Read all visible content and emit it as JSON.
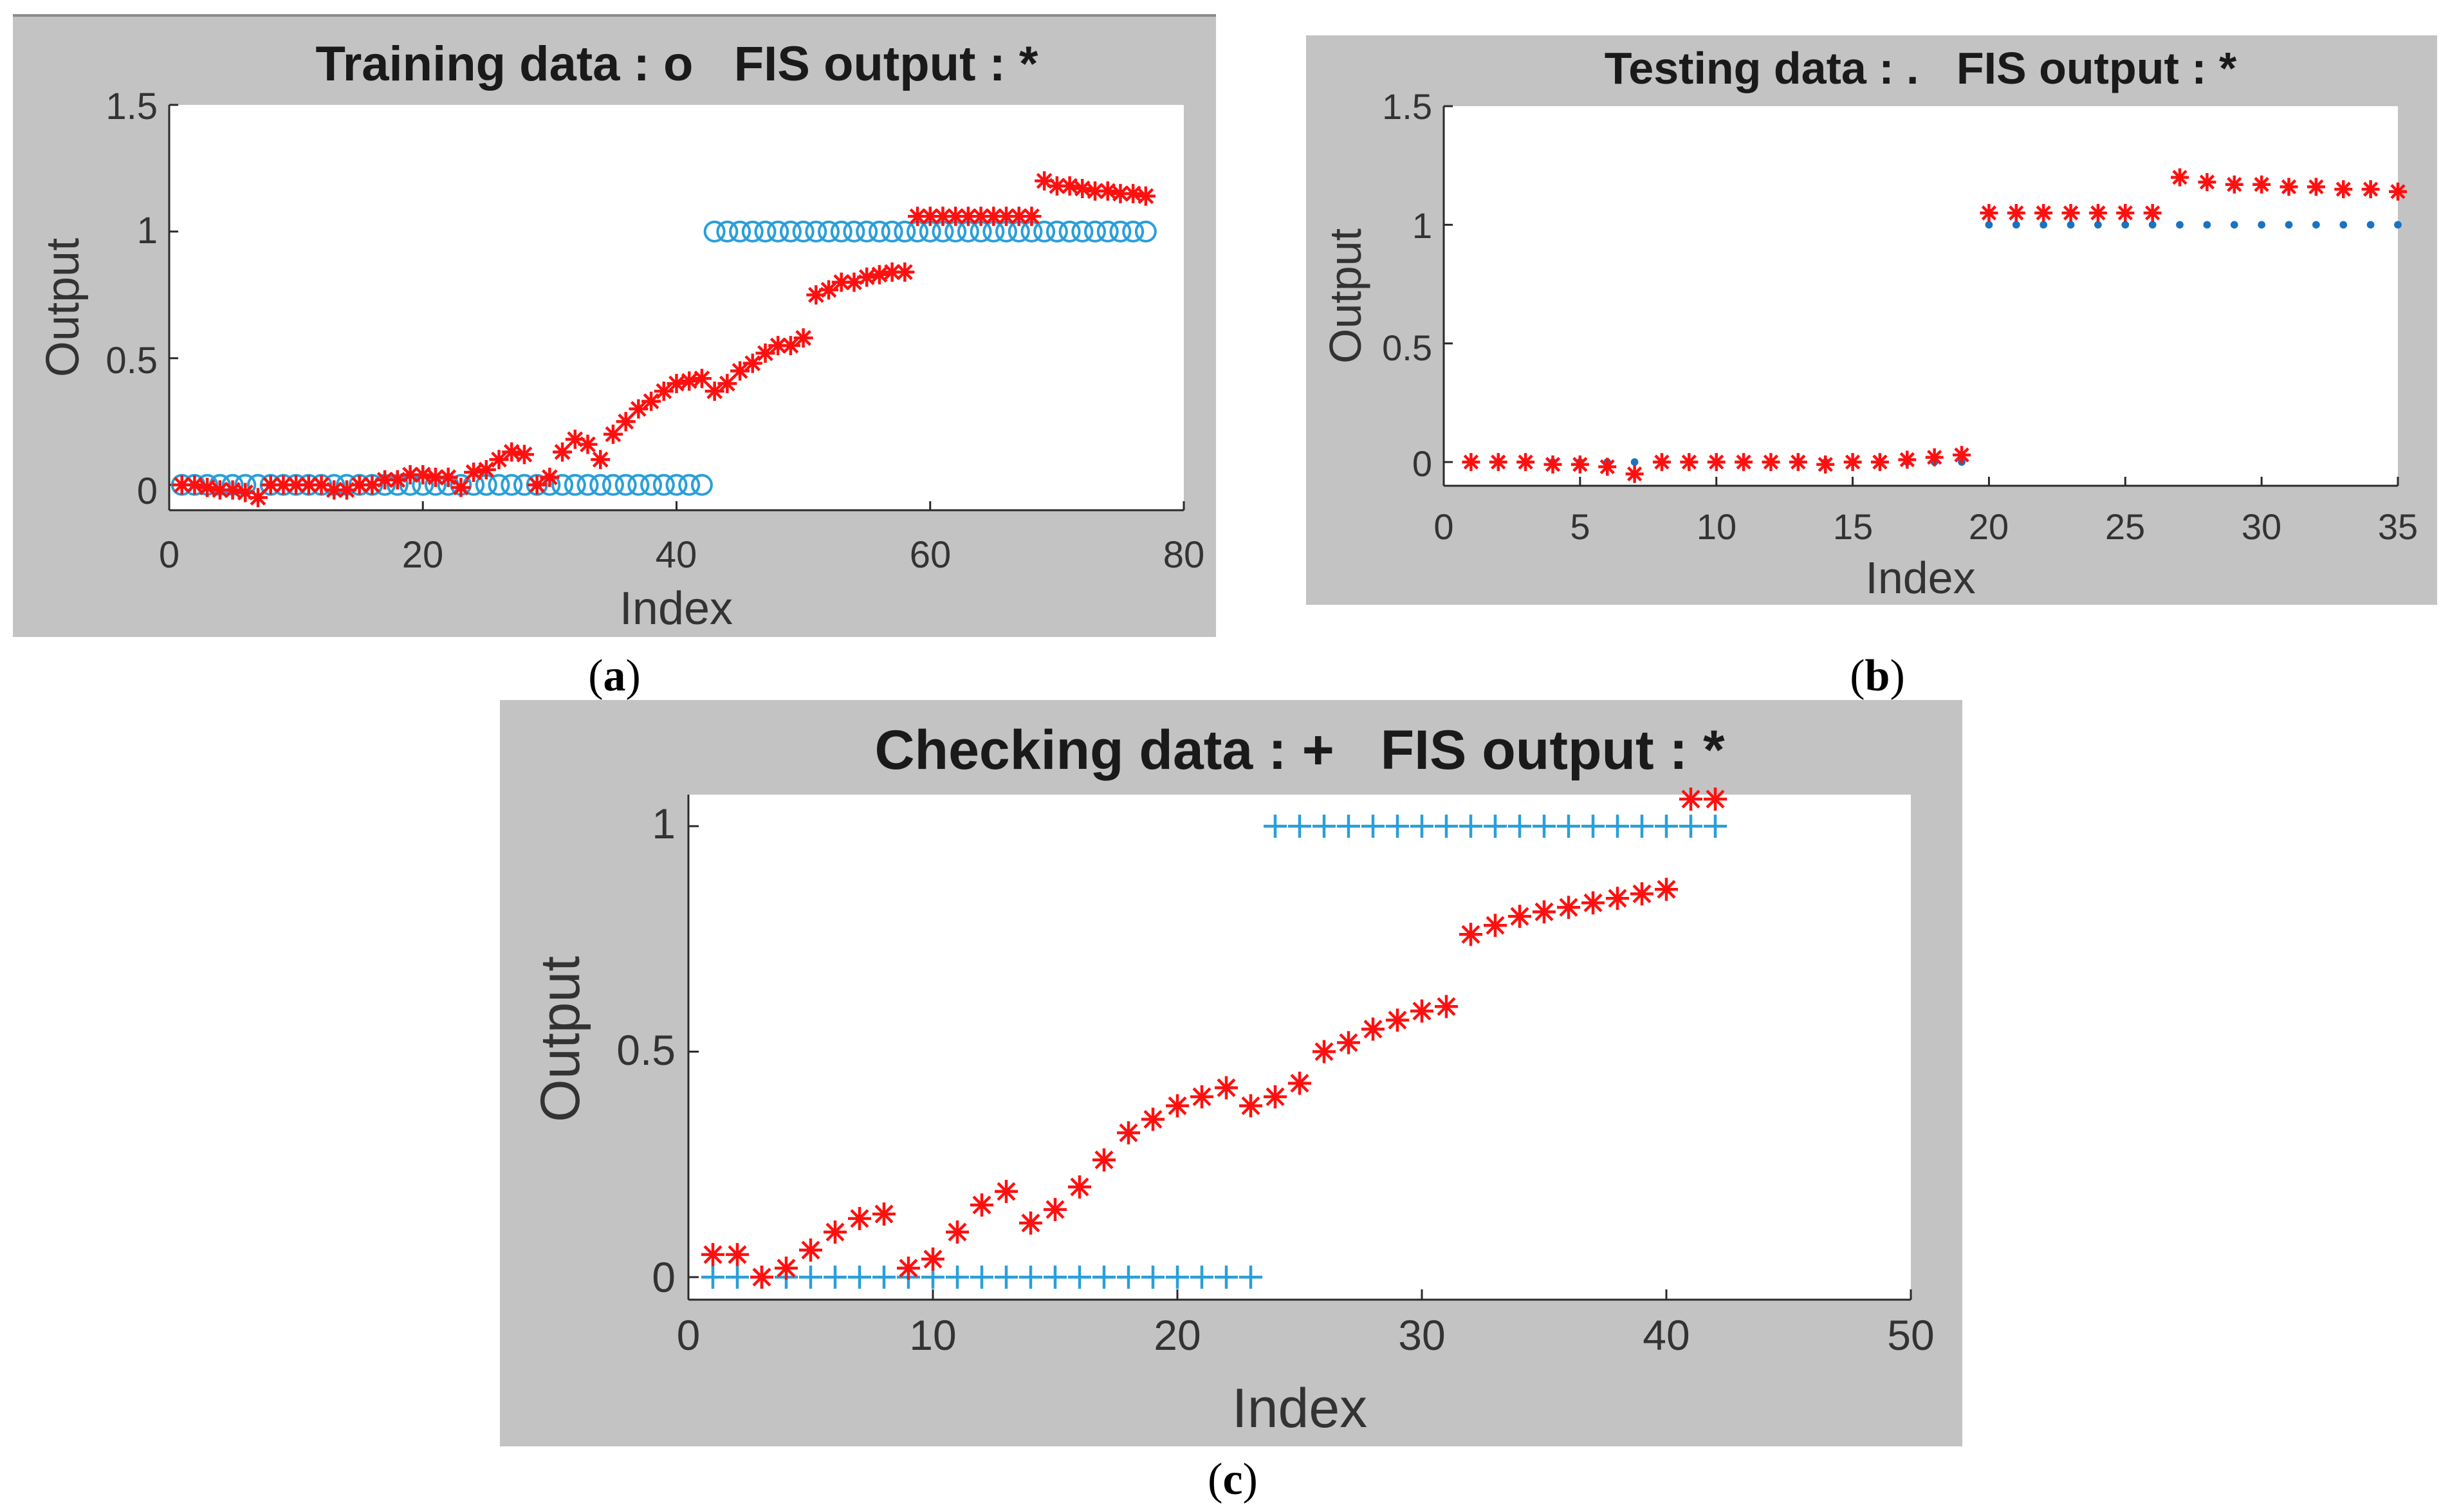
{
  "colors": {
    "panel_bg": "#c3c3c3",
    "plot_bg": "#ffffff",
    "axis": "#2a2a2a",
    "data_marker": "#2a9fd8",
    "data_marker_dark": "#1a73c0",
    "fis_marker": "#ff1010"
  },
  "chart_data": [
    {
      "type": "scatter",
      "title": "Training data : o   FIS output : *",
      "caption_letter": "a",
      "xlabel": "Index",
      "ylabel": "Output",
      "xlim": [
        0,
        80
      ],
      "ylim": [
        -0.1,
        1.5
      ],
      "xticks": [
        0,
        20,
        40,
        60,
        80
      ],
      "yticks": [
        0,
        0.5,
        1,
        1.5
      ],
      "xtick_labels": [
        "0",
        "20",
        "40",
        "60",
        "80"
      ],
      "ytick_labels": [
        "0",
        "0.5",
        "1",
        "1.5"
      ],
      "grid": false,
      "series": [
        {
          "name": "Training data",
          "marker": "o",
          "x": [
            1,
            2,
            3,
            4,
            5,
            6,
            7,
            8,
            9,
            10,
            11,
            12,
            13,
            14,
            15,
            16,
            17,
            18,
            19,
            20,
            21,
            22,
            23,
            24,
            25,
            26,
            27,
            28,
            29,
            30,
            31,
            32,
            33,
            34,
            35,
            36,
            37,
            38,
            39,
            40,
            41,
            42,
            43,
            44,
            45,
            46,
            47,
            48,
            49,
            50,
            51,
            52,
            53,
            54,
            55,
            56,
            57,
            58,
            59,
            60,
            61,
            62,
            63,
            64,
            65,
            66,
            67,
            68,
            69,
            70,
            71,
            72,
            73,
            74,
            75,
            76,
            77
          ],
          "y": [
            0,
            0,
            0,
            0,
            0,
            0,
            0,
            0,
            0,
            0,
            0,
            0,
            0,
            0,
            0,
            0,
            0,
            0,
            0,
            0,
            0,
            0,
            0,
            0,
            0,
            0,
            0,
            0,
            0,
            0,
            0,
            0,
            0,
            0,
            0,
            0,
            0,
            0,
            0,
            0,
            0,
            0,
            1,
            1,
            1,
            1,
            1,
            1,
            1,
            1,
            1,
            1,
            1,
            1,
            1,
            1,
            1,
            1,
            1,
            1,
            1,
            1,
            1,
            1,
            1,
            1,
            1,
            1,
            1,
            1,
            1,
            1,
            1,
            1,
            1,
            1,
            1
          ]
        },
        {
          "name": "FIS output",
          "marker": "*",
          "x": [
            1,
            2,
            3,
            4,
            5,
            6,
            7,
            8,
            9,
            10,
            11,
            12,
            13,
            14,
            15,
            16,
            17,
            18,
            19,
            20,
            21,
            22,
            23,
            24,
            25,
            26,
            27,
            28,
            29,
            30,
            31,
            32,
            33,
            34,
            35,
            36,
            37,
            38,
            39,
            40,
            41,
            42,
            43,
            44,
            45,
            46,
            47,
            48,
            49,
            50,
            51,
            52,
            53,
            54,
            55,
            56,
            57,
            58,
            59,
            60,
            61,
            62,
            63,
            64,
            65,
            66,
            67,
            68,
            69,
            70,
            71,
            72,
            73,
            74,
            75,
            76,
            77
          ],
          "y": [
            0.0,
            0.0,
            -0.01,
            -0.02,
            -0.02,
            -0.03,
            -0.05,
            0.0,
            0.0,
            0.0,
            0.0,
            0.0,
            -0.02,
            -0.02,
            0.0,
            0.0,
            0.02,
            0.02,
            0.04,
            0.04,
            0.03,
            0.03,
            -0.01,
            0.05,
            0.06,
            0.1,
            0.13,
            0.12,
            0.0,
            0.03,
            0.13,
            0.18,
            0.16,
            0.1,
            0.2,
            0.25,
            0.3,
            0.33,
            0.37,
            0.4,
            0.41,
            0.42,
            0.37,
            0.4,
            0.45,
            0.48,
            0.52,
            0.55,
            0.55,
            0.58,
            0.75,
            0.77,
            0.8,
            0.8,
            0.82,
            0.83,
            0.84,
            0.84,
            1.06,
            1.06,
            1.06,
            1.06,
            1.06,
            1.06,
            1.06,
            1.06,
            1.06,
            1.06,
            1.2,
            1.18,
            1.18,
            1.17,
            1.16,
            1.16,
            1.15,
            1.15,
            1.14
          ]
        }
      ]
    },
    {
      "type": "scatter",
      "title": "Testing data : .   FIS output : *",
      "caption_letter": "b",
      "xlabel": "Index",
      "ylabel": "Output",
      "xlim": [
        0,
        35
      ],
      "ylim": [
        -0.1,
        1.5
      ],
      "xticks": [
        0,
        5,
        10,
        15,
        20,
        25,
        30,
        35
      ],
      "yticks": [
        0,
        0.5,
        1,
        1.5
      ],
      "xtick_labels": [
        "0",
        "5",
        "10",
        "15",
        "20",
        "25",
        "30",
        "35"
      ],
      "ytick_labels": [
        "0",
        "0.5",
        "1",
        "1.5"
      ],
      "grid": false,
      "series": [
        {
          "name": "Testing data",
          "marker": ".",
          "x": [
            1,
            2,
            3,
            4,
            5,
            6,
            7,
            8,
            9,
            10,
            11,
            12,
            13,
            14,
            15,
            16,
            17,
            18,
            19,
            20,
            21,
            22,
            23,
            24,
            25,
            26,
            27,
            28,
            29,
            30,
            31,
            32,
            33,
            34,
            35
          ],
          "y": [
            0,
            0,
            0,
            0,
            0,
            0,
            0,
            0,
            0,
            0,
            0,
            0,
            0,
            0,
            0,
            0,
            0,
            0,
            0,
            1,
            1,
            1,
            1,
            1,
            1,
            1,
            1,
            1,
            1,
            1,
            1,
            1,
            1,
            1,
            1
          ]
        },
        {
          "name": "FIS output",
          "marker": "*",
          "x": [
            1,
            2,
            3,
            4,
            5,
            6,
            7,
            8,
            9,
            10,
            11,
            12,
            13,
            14,
            15,
            16,
            17,
            18,
            19,
            20,
            21,
            22,
            23,
            24,
            25,
            26,
            27,
            28,
            29,
            30,
            31,
            32,
            33,
            34,
            35
          ],
          "y": [
            0.0,
            0.0,
            0.0,
            -0.01,
            -0.01,
            -0.02,
            -0.05,
            0.0,
            0.0,
            0.0,
            0.0,
            0.0,
            0.0,
            -0.01,
            0.0,
            0.0,
            0.01,
            0.02,
            0.03,
            1.05,
            1.05,
            1.05,
            1.05,
            1.05,
            1.05,
            1.05,
            1.2,
            1.18,
            1.17,
            1.17,
            1.16,
            1.16,
            1.15,
            1.15,
            1.14
          ]
        }
      ]
    },
    {
      "type": "scatter",
      "title": "Checking data : +   FIS output : *",
      "caption_letter": "c",
      "xlabel": "Index",
      "ylabel": "Output",
      "xlim": [
        0,
        50
      ],
      "ylim": [
        -0.05,
        1.07
      ],
      "xticks": [
        0,
        10,
        20,
        30,
        40,
        50
      ],
      "yticks": [
        0,
        0.5,
        1
      ],
      "xtick_labels": [
        "0",
        "10",
        "20",
        "30",
        "40",
        "50"
      ],
      "ytick_labels": [
        "0",
        "0.5",
        "1"
      ],
      "grid": false,
      "series": [
        {
          "name": "Checking data",
          "marker": "+",
          "x": [
            1,
            2,
            3,
            4,
            5,
            6,
            7,
            8,
            9,
            10,
            11,
            12,
            13,
            14,
            15,
            16,
            17,
            18,
            19,
            20,
            21,
            22,
            23,
            24,
            25,
            26,
            27,
            28,
            29,
            30,
            31,
            32,
            33,
            34,
            35,
            36,
            37,
            38,
            39,
            40,
            41,
            42
          ],
          "y": [
            0,
            0,
            0,
            0,
            0,
            0,
            0,
            0,
            0,
            0,
            0,
            0,
            0,
            0,
            0,
            0,
            0,
            0,
            0,
            0,
            0,
            0,
            0,
            1,
            1,
            1,
            1,
            1,
            1,
            1,
            1,
            1,
            1,
            1,
            1,
            1,
            1,
            1,
            1,
            1,
            1,
            1
          ]
        },
        {
          "name": "FIS output",
          "marker": "*",
          "x": [
            1,
            2,
            3,
            4,
            5,
            6,
            7,
            8,
            9,
            10,
            11,
            12,
            13,
            14,
            15,
            16,
            17,
            18,
            19,
            20,
            21,
            22,
            23,
            24,
            25,
            26,
            27,
            28,
            29,
            30,
            31,
            32,
            33,
            34,
            35,
            36,
            37,
            38,
            39,
            40,
            41,
            42
          ],
          "y": [
            0.05,
            0.05,
            0.0,
            0.02,
            0.06,
            0.1,
            0.13,
            0.14,
            0.02,
            0.04,
            0.1,
            0.16,
            0.19,
            0.12,
            0.15,
            0.2,
            0.26,
            0.32,
            0.35,
            0.38,
            0.4,
            0.42,
            0.38,
            0.4,
            0.43,
            0.5,
            0.52,
            0.55,
            0.57,
            0.59,
            0.6,
            0.76,
            0.78,
            0.8,
            0.81,
            0.82,
            0.83,
            0.84,
            0.85,
            0.86,
            1.06,
            1.06
          ]
        }
      ]
    }
  ]
}
